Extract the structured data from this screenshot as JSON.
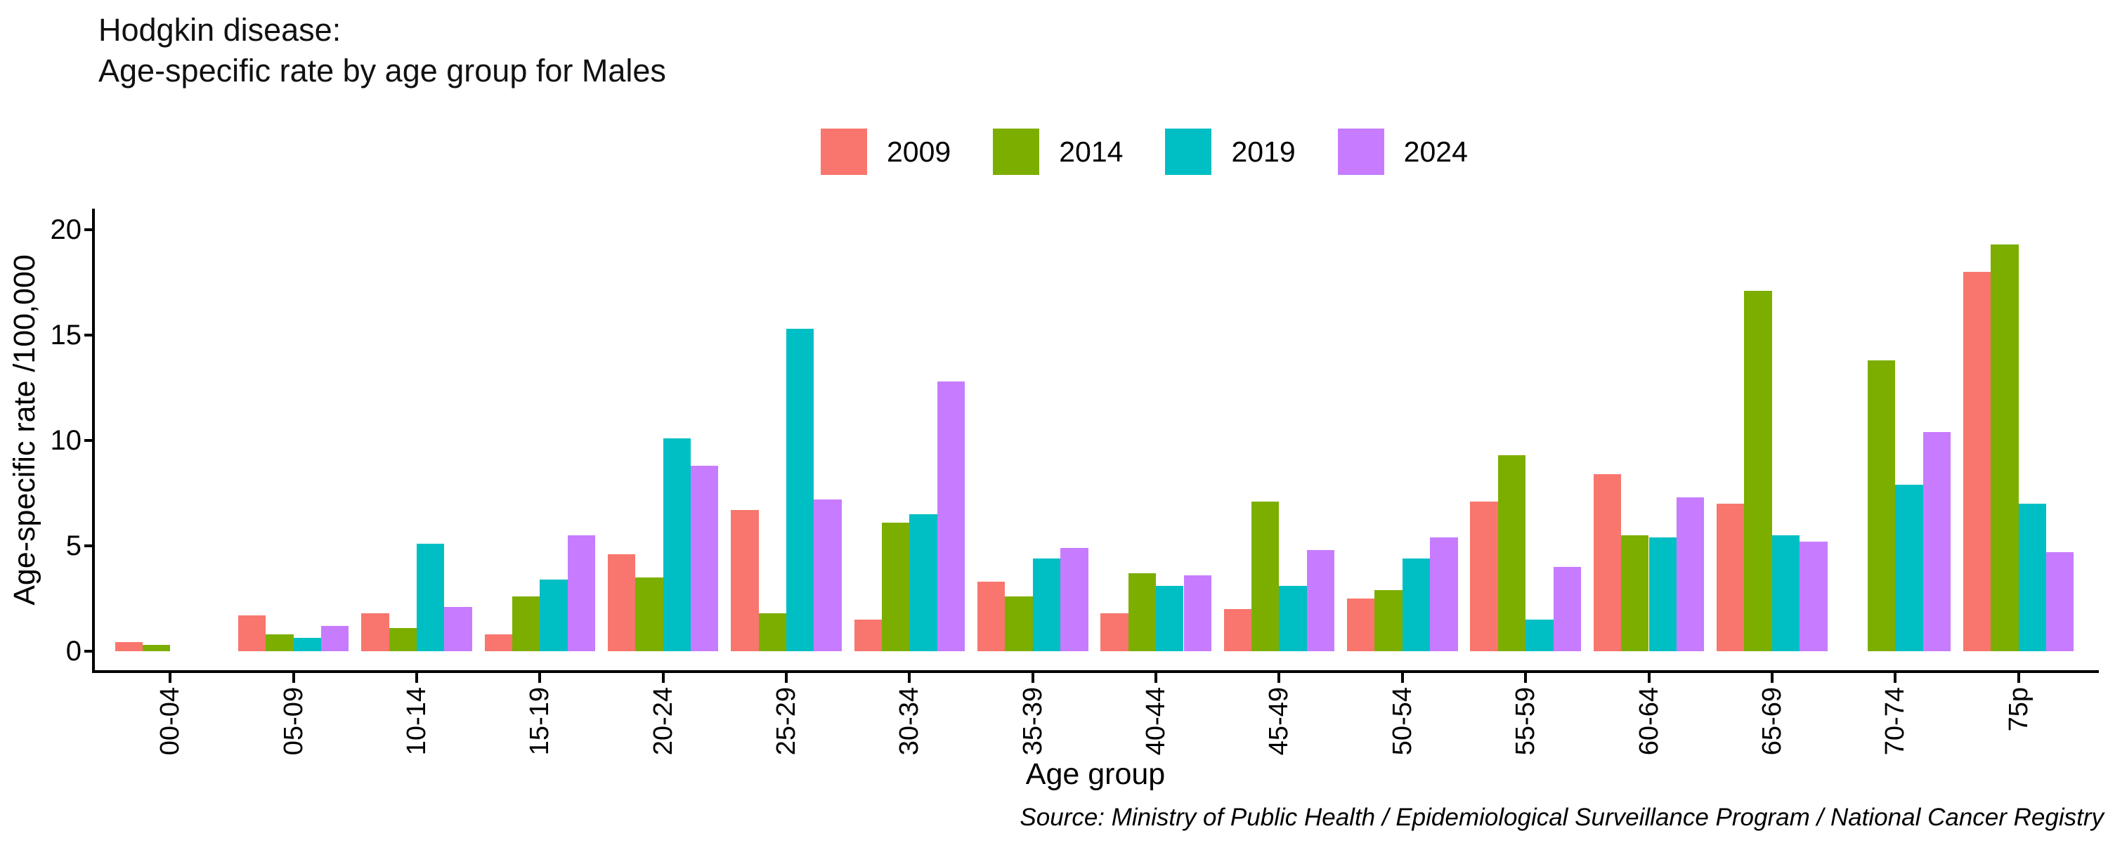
{
  "title": {
    "line1": "Hodgkin disease:",
    "line2": "Age-specific rate by age group for Males"
  },
  "chart_data": {
    "type": "bar",
    "title": "Hodgkin disease: Age-specific rate by age group for Males",
    "categories": [
      "00-04",
      "05-09",
      "10-14",
      "15-19",
      "20-24",
      "25-29",
      "30-34",
      "35-39",
      "40-44",
      "45-49",
      "50-54",
      "55-59",
      "60-64",
      "65-69",
      "70-74",
      "75p"
    ],
    "series": [
      {
        "name": "2009",
        "color": "#F8766D",
        "values": [
          0.45,
          1.7,
          1.8,
          0.8,
          4.6,
          6.7,
          1.5,
          3.3,
          1.8,
          2.0,
          2.5,
          7.1,
          8.4,
          7.0,
          0,
          18.0
        ]
      },
      {
        "name": "2014",
        "color": "#7CAE00",
        "values": [
          0.3,
          0.8,
          1.1,
          2.6,
          3.5,
          1.8,
          6.1,
          2.6,
          3.7,
          7.1,
          2.9,
          9.3,
          5.5,
          17.1,
          13.8,
          19.3
        ]
      },
      {
        "name": "2019",
        "color": "#00BFC4",
        "values": [
          0,
          0.65,
          5.1,
          3.4,
          10.1,
          15.3,
          6.5,
          4.4,
          3.1,
          3.1,
          4.4,
          1.5,
          5.4,
          5.5,
          7.9,
          7.0
        ]
      },
      {
        "name": "2024",
        "color": "#C77CFF",
        "values": [
          0,
          1.2,
          2.1,
          5.5,
          8.8,
          7.2,
          12.8,
          4.9,
          3.6,
          4.8,
          5.4,
          4.0,
          7.3,
          5.2,
          10.4,
          4.7
        ]
      }
    ],
    "xlabel": "Age group",
    "ylabel": "Age-specific rate /100,000",
    "ylim": [
      0,
      20
    ],
    "yticks": [
      0,
      5,
      10,
      15,
      20
    ],
    "grid": false,
    "legend_position": "top",
    "x_tick_rotation": 90
  },
  "source": "Source: Ministry of Public Health / Epidemiological Surveillance Program / National Cancer Registry"
}
